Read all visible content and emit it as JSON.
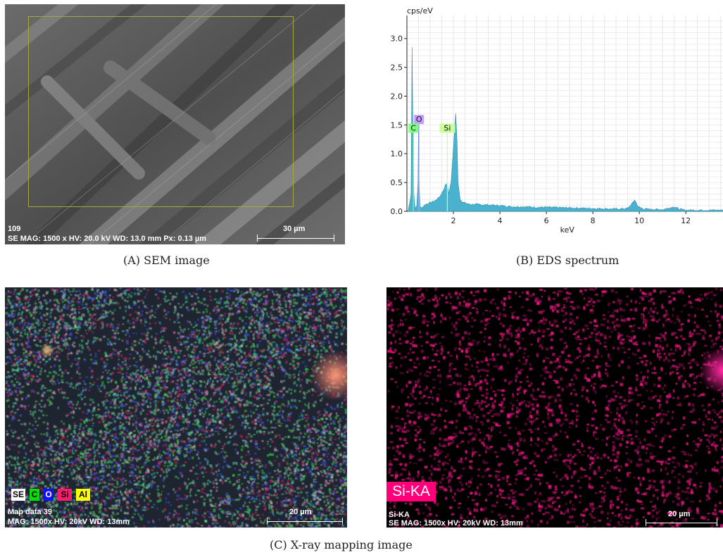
{
  "panel_a": {
    "id_text": "109",
    "info_text": "SE  MAG: 1500 x  HV: 20.0 kV  WD: 13.0 mm  Px: 0.13 µm",
    "scale_label": "30 µm",
    "caption": "(A) SEM image"
  },
  "panel_b": {
    "caption": "(B) EDS spectrum",
    "fill_color": "#4ab2cf",
    "peak_labels": [
      {
        "text": "O",
        "color": "#c79bff"
      },
      {
        "text": "C",
        "color": "#7fff7f"
      },
      {
        "text": "Si",
        "color": "#c9ff9a"
      }
    ]
  },
  "chart_data": {
    "type": "area",
    "ylabel": "cps/eV",
    "xlabel": "keV",
    "xlim": [
      0,
      13.6
    ],
    "ylim": [
      0,
      3.4
    ],
    "xticks": [
      "2",
      "4",
      "6",
      "8",
      "10",
      "12"
    ],
    "yticks": [
      "0.0",
      "0.5",
      "1.0",
      "1.5",
      "2.0",
      "2.5",
      "3.0"
    ],
    "grid": true,
    "series": [
      {
        "x": [
          0.05,
          0.18,
          0.22,
          0.26,
          0.3,
          0.35,
          0.42,
          0.48,
          0.5,
          0.52,
          0.56,
          0.6,
          0.8,
          1.0,
          1.2,
          1.4,
          1.55,
          1.65,
          1.74,
          1.8,
          1.9,
          2.0,
          2.1,
          2.16,
          2.2,
          2.3,
          2.45,
          2.7,
          3.0,
          3.5,
          4.0,
          4.5,
          5.0,
          5.5,
          6.0,
          7.0,
          8.0,
          9.0,
          9.5,
          9.7,
          9.8,
          9.95,
          10.2,
          11.0,
          11.3,
          11.5,
          11.7,
          12.0,
          12.5,
          13.0,
          13.6
        ],
        "y": [
          0.0,
          0.3,
          2.85,
          1.4,
          0.3,
          0.05,
          0.08,
          0.5,
          1.5,
          0.6,
          0.1,
          0.05,
          0.12,
          0.15,
          0.18,
          0.25,
          0.35,
          0.45,
          0.48,
          0.3,
          0.5,
          1.1,
          1.7,
          1.2,
          0.5,
          0.2,
          0.15,
          0.12,
          0.12,
          0.11,
          0.1,
          0.08,
          0.08,
          0.07,
          0.07,
          0.06,
          0.05,
          0.04,
          0.05,
          0.14,
          0.2,
          0.08,
          0.04,
          0.03,
          0.06,
          0.08,
          0.04,
          0.02,
          0.02,
          0.02,
          0.02
        ]
      }
    ],
    "peak_markers": [
      {
        "element": "O",
        "x": 0.52,
        "y": 1.6
      },
      {
        "element": "C",
        "x": 0.28,
        "y": 1.45
      },
      {
        "element": "Si",
        "x": 1.74,
        "y": 1.45
      }
    ]
  },
  "panel_c": {
    "legend": [
      {
        "text": "SE",
        "bg": "#ffffff",
        "fg": "#000000"
      },
      {
        "text": "C",
        "bg": "#00e000",
        "fg": "#000000"
      },
      {
        "text": "O",
        "bg": "#1010ff",
        "fg": "#ffffff"
      },
      {
        "text": "Si",
        "bg": "#ff1a6e",
        "fg": "#000000"
      },
      {
        "text": "Al",
        "bg": "#ffff00",
        "fg": "#000000"
      }
    ],
    "title_text": "Map data 39",
    "info_text": "MAG: 1500x  HV: 20kV  WD: 13mm",
    "scale_label": "20 µm",
    "caption": "(C) X-ray mapping image"
  },
  "panel_d": {
    "element_label": "Si-KA",
    "title_text": "Si-KA",
    "info_text": "SE  MAG: 1500x  HV: 20kV  WD: 13mm",
    "scale_label": "20 µm",
    "dot_color": "#ff1a8c"
  }
}
